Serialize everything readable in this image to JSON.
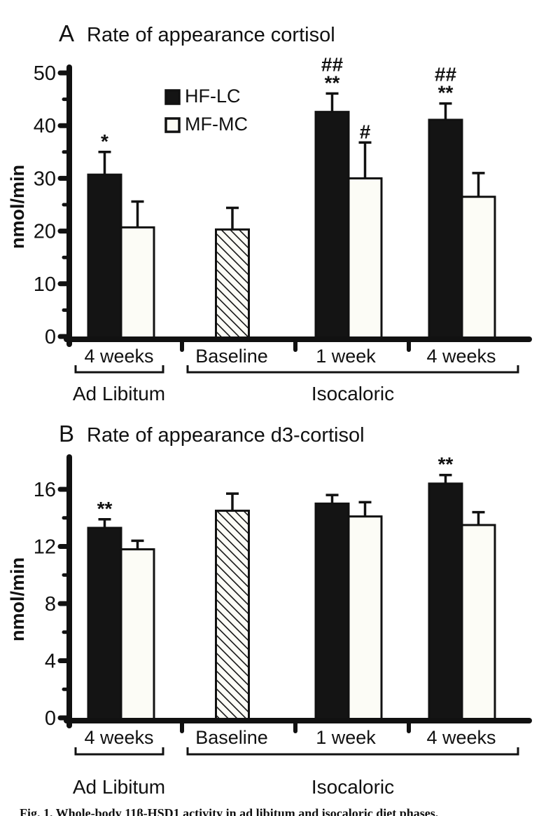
{
  "figure": {
    "caption_partial": "Fig. 1. Whole-body 11β-HSD1 activity in ad libitum and isocaloric diet phases."
  },
  "colors": {
    "bar_black": "#141414",
    "bar_white": "#fcfcf6",
    "axis": "#111111"
  },
  "chart_data": [
    {
      "type": "bar",
      "panel": "A",
      "title": "Rate of appearance cortisol",
      "ylabel": "nmol/min",
      "ylim": [
        0,
        50
      ],
      "ytick_step": 10,
      "yminor_step": 5,
      "grid": false,
      "legend": [
        {
          "label": "HF-LC",
          "swatch": "filled"
        },
        {
          "label": "MF-MC",
          "swatch": "open"
        }
      ],
      "sections": [
        {
          "label": "Ad Libitum"
        },
        {
          "label": "Isocaloric"
        }
      ],
      "groups": [
        {
          "label": "4 weeks",
          "section": 0,
          "bars": [
            {
              "series": "HF-LC",
              "fill": "black",
              "value": 30.7,
              "err": 4.3,
              "annotation": [
                "*"
              ]
            },
            {
              "series": "MF-MC",
              "fill": "white",
              "value": 20.7,
              "err": 4.9,
              "annotation": []
            }
          ]
        },
        {
          "label": "Baseline",
          "section": 1,
          "bars": [
            {
              "series": "Baseline",
              "fill": "hatch",
              "value": 20.3,
              "err": 4.1,
              "annotation": []
            }
          ]
        },
        {
          "label": "1 week",
          "section": 1,
          "bars": [
            {
              "series": "HF-LC",
              "fill": "black",
              "value": 42.6,
              "err": 3.5,
              "annotation": [
                "##",
                "**"
              ]
            },
            {
              "series": "MF-MC",
              "fill": "white",
              "value": 30.0,
              "err": 6.8,
              "annotation": [
                "#"
              ]
            }
          ]
        },
        {
          "label": "4 weeks",
          "section": 1,
          "bars": [
            {
              "series": "HF-LC",
              "fill": "black",
              "value": 41.1,
              "err": 3.1,
              "annotation": [
                "##",
                "**"
              ]
            },
            {
              "series": "MF-MC",
              "fill": "white",
              "value": 26.5,
              "err": 4.5,
              "annotation": []
            }
          ]
        }
      ]
    },
    {
      "type": "bar",
      "panel": "B",
      "title": "Rate of appearance d3-cortisol",
      "ylabel": "nmol/min",
      "ylim": [
        0,
        16
      ],
      "ytick_step": 4,
      "yminor_step": 2,
      "grid": false,
      "legend": [],
      "sections": [
        {
          "label": "Ad Libitum"
        },
        {
          "label": "Isocaloric"
        }
      ],
      "groups": [
        {
          "label": "4 weeks",
          "section": 0,
          "bars": [
            {
              "series": "HF-LC",
              "fill": "black",
              "value": 13.3,
              "err": 0.6,
              "annotation": [
                "**"
              ]
            },
            {
              "series": "MF-MC",
              "fill": "white",
              "value": 11.8,
              "err": 0.6,
              "annotation": []
            }
          ]
        },
        {
          "label": "Baseline",
          "section": 1,
          "bars": [
            {
              "series": "Baseline",
              "fill": "hatch",
              "value": 14.5,
              "err": 1.2,
              "annotation": []
            }
          ]
        },
        {
          "label": "1 week",
          "section": 1,
          "bars": [
            {
              "series": "HF-LC",
              "fill": "black",
              "value": 15.0,
              "err": 0.6,
              "annotation": []
            },
            {
              "series": "MF-MC",
              "fill": "white",
              "value": 14.1,
              "err": 1.0,
              "annotation": []
            }
          ]
        },
        {
          "label": "4 weeks",
          "section": 1,
          "bars": [
            {
              "series": "HF-LC",
              "fill": "black",
              "value": 16.4,
              "err": 0.6,
              "annotation": [
                "**"
              ]
            },
            {
              "series": "MF-MC",
              "fill": "white",
              "value": 13.5,
              "err": 0.9,
              "annotation": []
            }
          ]
        }
      ]
    }
  ]
}
